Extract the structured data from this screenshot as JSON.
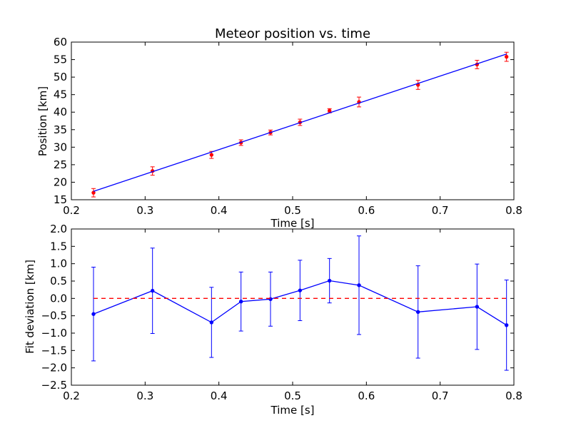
{
  "chart_data": [
    {
      "type": "line",
      "title": "Meteor position vs. time",
      "xlabel": "Time [s]",
      "ylabel": "Position [km]",
      "xlim": [
        0.2,
        0.8
      ],
      "ylim": [
        15,
        60
      ],
      "xticks": [
        "0.2",
        "0.3",
        "0.4",
        "0.5",
        "0.6",
        "0.7",
        "0.8"
      ],
      "yticks": [
        "15",
        "20",
        "25",
        "30",
        "35",
        "40",
        "45",
        "50",
        "55",
        "60"
      ],
      "grid": false,
      "series": [
        {
          "kind": "errorbar",
          "color": "#ff0000",
          "x": [
            0.23,
            0.31,
            0.39,
            0.43,
            0.47,
            0.51,
            0.55,
            0.59,
            0.67,
            0.75,
            0.79
          ],
          "y": [
            17.0,
            23.2,
            27.8,
            31.3,
            34.2,
            37.1,
            40.4,
            42.9,
            47.8,
            53.6,
            55.8
          ],
          "err": [
            1.2,
            1.2,
            1.0,
            0.8,
            0.7,
            0.9,
            0.6,
            1.4,
            1.3,
            1.2,
            1.3
          ]
        },
        {
          "kind": "fit-line",
          "color": "#0000ff",
          "x": [
            0.23,
            0.79
          ],
          "y": [
            17.4,
            56.6
          ]
        }
      ]
    },
    {
      "type": "line",
      "title": "",
      "xlabel": "Time [s]",
      "ylabel": "Fit deviation [km]",
      "xlim": [
        0.2,
        0.8
      ],
      "ylim": [
        -2.5,
        2.0
      ],
      "xticks": [
        "0.2",
        "0.3",
        "0.4",
        "0.5",
        "0.6",
        "0.7",
        "0.8"
      ],
      "yticks": [
        "−2.5",
        "−2.0",
        "−1.5",
        "−1.0",
        "−0.5",
        "0.0",
        "0.5",
        "1.0",
        "1.5",
        "2.0"
      ],
      "grid": false,
      "series": [
        {
          "kind": "errorbar-line",
          "color": "#0000ff",
          "x": [
            0.23,
            0.31,
            0.39,
            0.43,
            0.47,
            0.51,
            0.55,
            0.59,
            0.67,
            0.75,
            0.79
          ],
          "y": [
            -0.45,
            0.22,
            -0.69,
            -0.09,
            -0.02,
            0.23,
            0.51,
            0.38,
            -0.39,
            -0.24,
            -0.77
          ],
          "err": [
            1.35,
            1.23,
            1.01,
            0.85,
            0.78,
            0.87,
            0.64,
            1.42,
            1.33,
            1.23,
            1.3
          ]
        },
        {
          "kind": "reference-line",
          "color": "#ff0000",
          "dashed": true,
          "x": [
            0.23,
            0.79
          ],
          "y": [
            0.0,
            0.0
          ]
        }
      ]
    }
  ]
}
